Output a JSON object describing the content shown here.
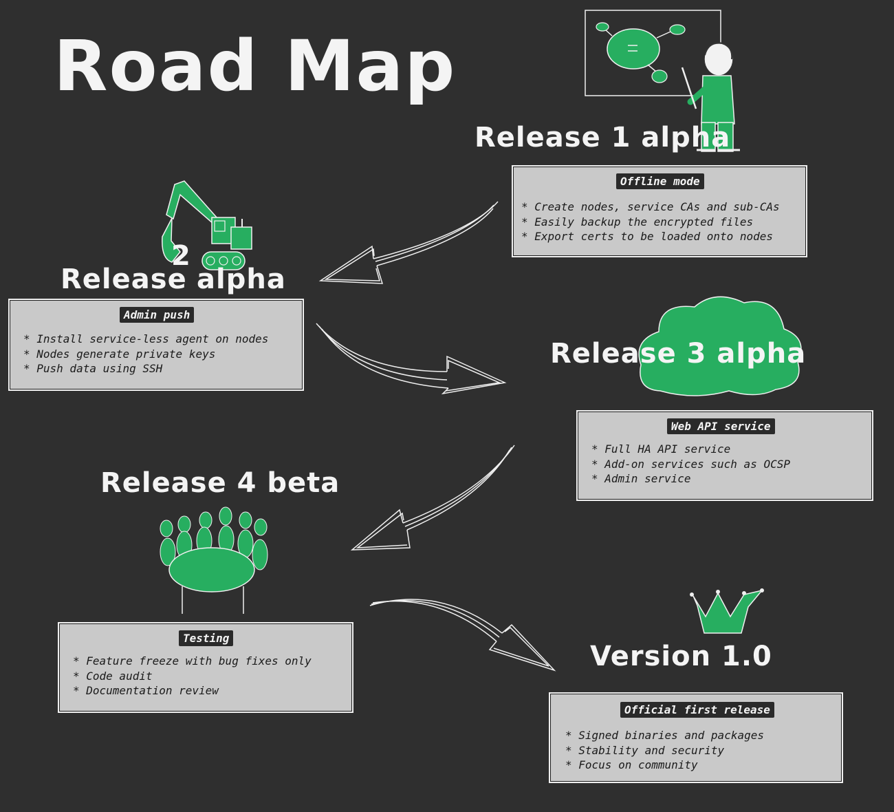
{
  "title": "Road Map",
  "colors": {
    "background": "#2f2f2f",
    "chalk": "#f4f4f4",
    "accent": "#27ae60",
    "card": "#c9c9c9"
  },
  "releases": [
    {
      "title": "Release 1 alpha",
      "tag": "Offline mode",
      "icon": "presenter-whiteboard-icon",
      "items": [
        "Create nodes, service CAs and sub-CAs",
        "Easily backup the encrypted files",
        "Export certs to be loaded onto nodes"
      ]
    },
    {
      "title_prefix": "Release",
      "title_number": "2",
      "title_suffix": "alpha",
      "tag": "Admin push",
      "icon": "excavator-icon",
      "items": [
        "Install service-less agent on nodes",
        "Nodes generate private keys",
        "Push data using SSH"
      ]
    },
    {
      "title": "Release 3 alpha",
      "tag": "Web API service",
      "icon": "cloud-icon",
      "items": [
        "Full HA API service",
        "Add-on services such as OCSP",
        "Admin service"
      ]
    },
    {
      "title": "Release 4 beta",
      "tag": "Testing",
      "icon": "meeting-table-icon",
      "items": [
        "Feature freeze with bug fixes only",
        "Code audit",
        "Documentation review"
      ]
    },
    {
      "title": "Version 1.0",
      "tag": "Official first release",
      "icon": "crown-icon",
      "items": [
        "Signed binaries and packages",
        "Stability and security",
        "Focus on community"
      ]
    }
  ]
}
